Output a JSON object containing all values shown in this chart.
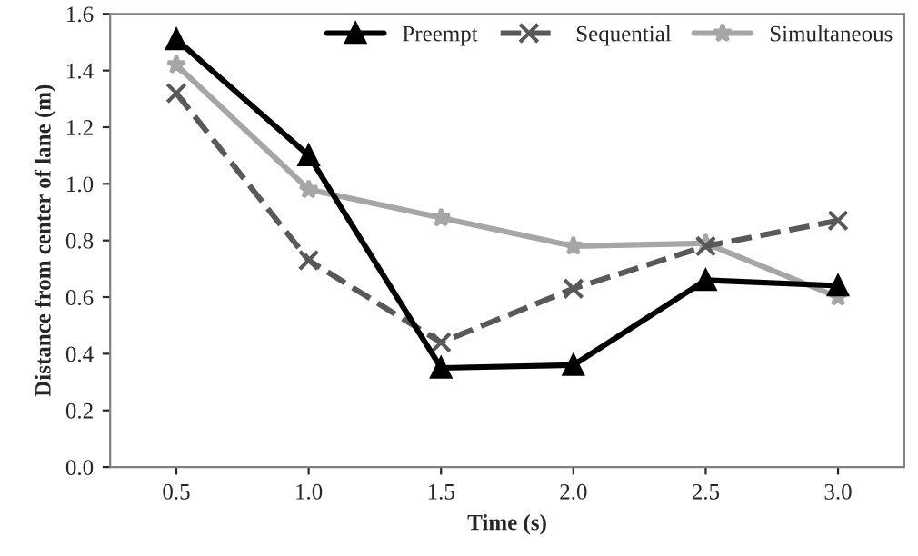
{
  "chart_data": {
    "type": "line",
    "xlabel": "Time (s)",
    "ylabel": "Distance from center of lane (m)",
    "categories": [
      "0.5",
      "1.0",
      "1.5",
      "2.0",
      "2.5",
      "3.0"
    ],
    "series": [
      {
        "name": "Preempt",
        "color": "#000000",
        "marker": "triangle",
        "line_style": "solid",
        "values": [
          1.51,
          1.1,
          0.35,
          0.36,
          0.66,
          0.64
        ]
      },
      {
        "name": "Sequential",
        "color": "#595959",
        "marker": "cross",
        "line_style": "dashed",
        "values": [
          1.32,
          0.73,
          0.44,
          0.63,
          0.78,
          0.87
        ]
      },
      {
        "name": "Simultaneous",
        "color": "#a6a6a6",
        "marker": "star",
        "line_style": "solid",
        "values": [
          1.42,
          0.98,
          0.88,
          0.78,
          0.79,
          0.6
        ]
      }
    ],
    "ylim": [
      0,
      1.6
    ],
    "yticks": [
      {
        "value": 0,
        "label": "0.0"
      },
      {
        "value": 0.2,
        "label": "0.2"
      },
      {
        "value": 0.4,
        "label": "0.4"
      },
      {
        "value": 0.6,
        "label": "0.6"
      },
      {
        "value": 0.8,
        "label": "0.8"
      },
      {
        "value": 1.0,
        "label": "1.0"
      },
      {
        "value": 1.2,
        "label": "1.2"
      },
      {
        "value": 1.4,
        "label": "1.4"
      },
      {
        "value": 1.6,
        "label": "1.6"
      }
    ],
    "grid": false,
    "legend": "top right"
  }
}
